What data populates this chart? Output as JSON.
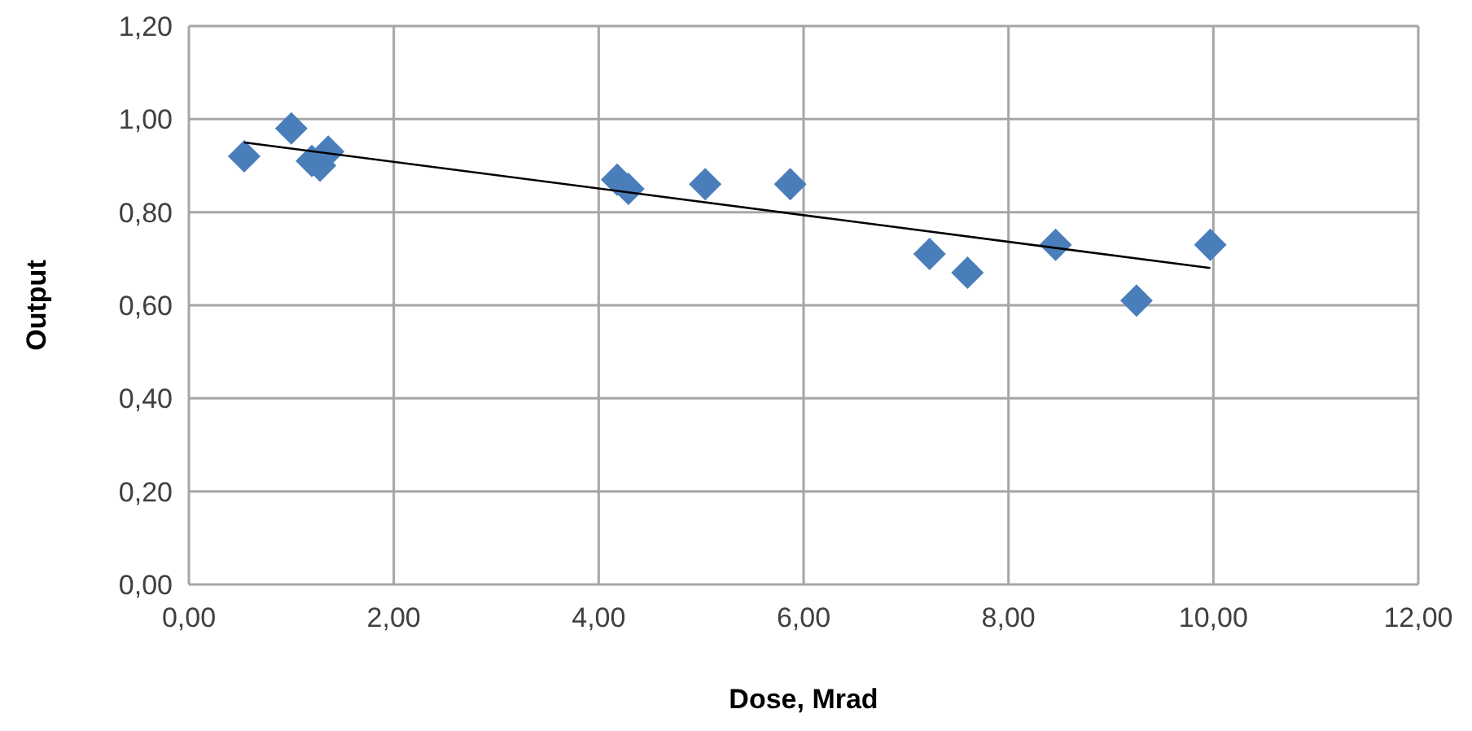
{
  "chart_data": {
    "type": "scatter",
    "xlabel": "Dose, Mrad",
    "ylabel": "Output",
    "xlim": [
      0,
      12
    ],
    "ylim": [
      0,
      1.2
    ],
    "xticks": [
      {
        "value": 0,
        "label": "0,00"
      },
      {
        "value": 2,
        "label": "2,00"
      },
      {
        "value": 4,
        "label": "4,00"
      },
      {
        "value": 6,
        "label": "6,00"
      },
      {
        "value": 8,
        "label": "8,00"
      },
      {
        "value": 10,
        "label": "10,00"
      },
      {
        "value": 12,
        "label": "12,00"
      }
    ],
    "yticks": [
      {
        "value": 0,
        "label": "0,00"
      },
      {
        "value": 0.2,
        "label": "0,20"
      },
      {
        "value": 0.4,
        "label": "0,40"
      },
      {
        "value": 0.6,
        "label": "0,60"
      },
      {
        "value": 0.8,
        "label": "0,80"
      },
      {
        "value": 1,
        "label": "1,00"
      },
      {
        "value": 1.2,
        "label": "1,20"
      }
    ],
    "grid": true,
    "marker": "diamond",
    "series": [
      {
        "color": "#4a7ebb",
        "x": [
          0.54,
          1.0,
          1.2,
          1.28,
          1.36,
          4.18,
          4.29,
          5.04,
          5.87,
          7.23,
          7.6,
          8.46,
          9.25,
          9.97
        ],
        "values": [
          0.92,
          0.98,
          0.91,
          0.9,
          0.93,
          0.87,
          0.85,
          0.86,
          0.86,
          0.71,
          0.67,
          0.73,
          0.61,
          0.73
        ]
      },
      {
        "type": "line",
        "color": "#000000",
        "marker": "none",
        "line_style": "solid",
        "x": [
          0.54,
          9.97
        ],
        "values": [
          0.95,
          0.68
        ]
      }
    ]
  }
}
